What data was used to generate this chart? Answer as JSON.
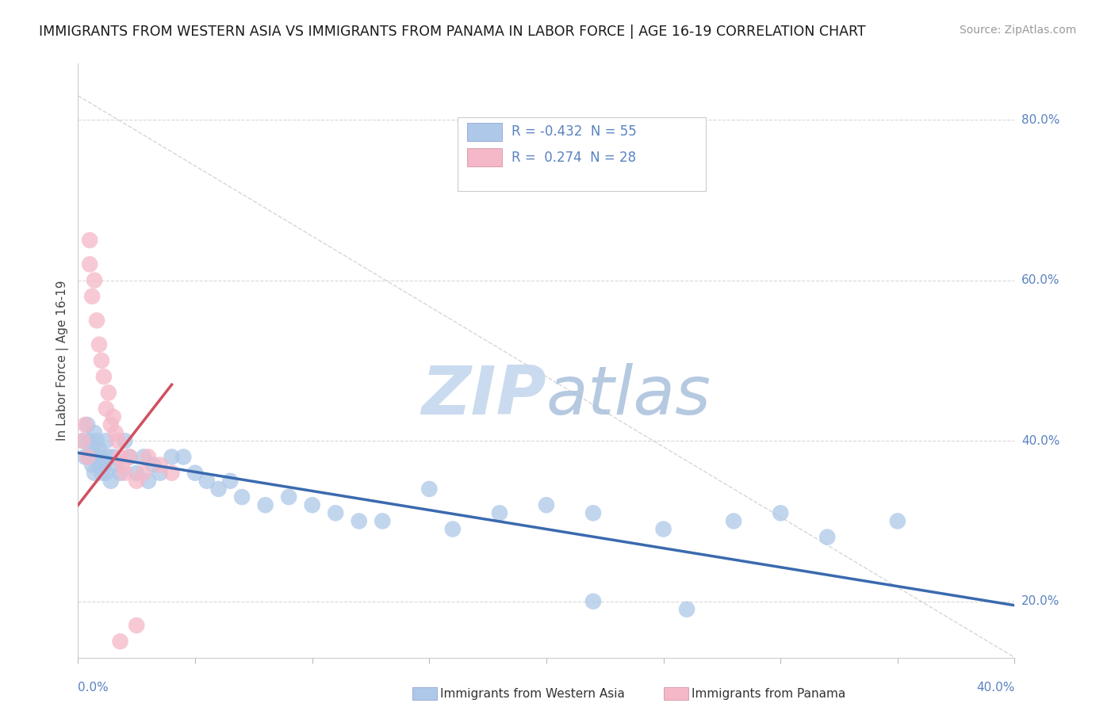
{
  "title": "IMMIGRANTS FROM WESTERN ASIA VS IMMIGRANTS FROM PANAMA IN LABOR FORCE | AGE 16-19 CORRELATION CHART",
  "source": "Source: ZipAtlas.com",
  "ylabel_label": "In Labor Force | Age 16-19",
  "legend1_label": "Immigrants from Western Asia",
  "legend2_label": "Immigrants from Panama",
  "R1": -0.432,
  "N1": 55,
  "R2": 0.274,
  "N2": 28,
  "xlim": [
    0.0,
    0.4
  ],
  "ylim": [
    0.13,
    0.87
  ],
  "y_ticks": [
    0.2,
    0.4,
    0.6,
    0.8
  ],
  "y_tick_labels": [
    "20.0%",
    "40.0%",
    "60.0%",
    "80.0%"
  ],
  "blue_scatter_color": "#adc8e8",
  "pink_scatter_color": "#f5b8c8",
  "blue_line_color": "#3a6aaf",
  "pink_line_color": "#d05060",
  "grid_color": "#d8d8d8",
  "ref_line_color": "#cccccc",
  "axis_tick_color": "#5a82c0",
  "title_color": "#1a1a1a",
  "source_color": "#999999",
  "ylabel_color": "#444444",
  "watermark_zip_color": "#c8d8ee",
  "watermark_atlas_color": "#b0c8e0",
  "western_asia_x": [
    0.002,
    0.003,
    0.004,
    0.005,
    0.005,
    0.006,
    0.006,
    0.007,
    0.007,
    0.008,
    0.008,
    0.009,
    0.009,
    0.01,
    0.01,
    0.011,
    0.012,
    0.012,
    0.013,
    0.014,
    0.015,
    0.016,
    0.018,
    0.02,
    0.022,
    0.025,
    0.028,
    0.03,
    0.032,
    0.035,
    0.04,
    0.045,
    0.05,
    0.055,
    0.06,
    0.065,
    0.07,
    0.08,
    0.09,
    0.1,
    0.11,
    0.12,
    0.13,
    0.15,
    0.16,
    0.18,
    0.2,
    0.22,
    0.25,
    0.28,
    0.3,
    0.32,
    0.35,
    0.22,
    0.26
  ],
  "western_asia_y": [
    0.4,
    0.38,
    0.42,
    0.38,
    0.4,
    0.37,
    0.39,
    0.41,
    0.36,
    0.38,
    0.4,
    0.37,
    0.39,
    0.36,
    0.38,
    0.37,
    0.4,
    0.36,
    0.38,
    0.35,
    0.38,
    0.37,
    0.36,
    0.4,
    0.38,
    0.36,
    0.38,
    0.35,
    0.37,
    0.36,
    0.38,
    0.38,
    0.36,
    0.35,
    0.34,
    0.35,
    0.33,
    0.32,
    0.33,
    0.32,
    0.31,
    0.3,
    0.3,
    0.34,
    0.29,
    0.31,
    0.32,
    0.31,
    0.29,
    0.3,
    0.31,
    0.28,
    0.3,
    0.2,
    0.19
  ],
  "panama_x": [
    0.002,
    0.003,
    0.004,
    0.005,
    0.005,
    0.006,
    0.007,
    0.008,
    0.009,
    0.01,
    0.011,
    0.012,
    0.013,
    0.014,
    0.015,
    0.016,
    0.017,
    0.018,
    0.019,
    0.02,
    0.022,
    0.025,
    0.028,
    0.03,
    0.035,
    0.04,
    0.025,
    0.018
  ],
  "panama_y": [
    0.4,
    0.42,
    0.38,
    0.65,
    0.62,
    0.58,
    0.6,
    0.55,
    0.52,
    0.5,
    0.48,
    0.44,
    0.46,
    0.42,
    0.43,
    0.41,
    0.4,
    0.38,
    0.37,
    0.36,
    0.38,
    0.35,
    0.36,
    0.38,
    0.37,
    0.36,
    0.17,
    0.15
  ]
}
